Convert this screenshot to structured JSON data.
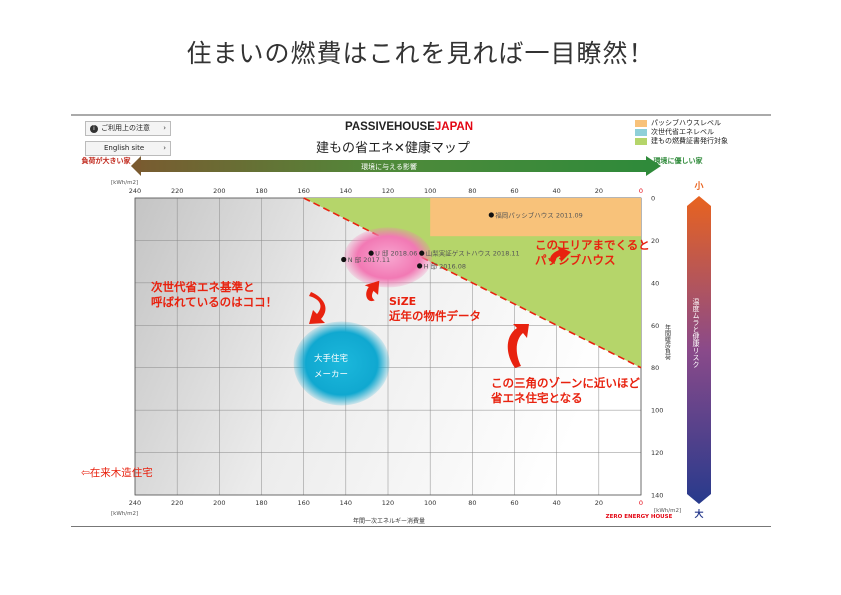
{
  "slide_title": "住まいの燃費はこれを見れば一目瞭然！",
  "header": {
    "btn_usage": "ご利用上の注意",
    "btn_english": "English site",
    "logo_a": "PASSIVEHOUSE",
    "logo_b": "JAPAN",
    "map_title": "建もの省エネ✕健康マップ"
  },
  "legend": [
    {
      "label": "パッシブハウスレベル",
      "color": "#f8c27a"
    },
    {
      "label": "次世代省エネレベル",
      "color": "#8fd0d8"
    },
    {
      "label": "建もの燃費証書発行対象",
      "color": "#b5d56a"
    }
  ],
  "arrow_bar": {
    "left_label": "負荷が大きい家",
    "middle_label": "環境に与える影響",
    "right_label": "環境に優しい家"
  },
  "risk_bar": {
    "top_label": "小",
    "bottom_label": "大",
    "side_label": "温度ムラと健康リスク"
  },
  "chart_data": {
    "type": "scatter",
    "xlabel": "年間一次エネルギー消費量",
    "ylabel": "年間暖房負荷",
    "x_unit": "[kWh/m2]",
    "y_unit": "[kWh/m2]",
    "x_reversed": true,
    "xlim": [
      240,
      0
    ],
    "ylim": [
      0,
      140
    ],
    "x_ticks": [
      "240",
      "220",
      "200",
      "180",
      "160",
      "140",
      "120",
      "100",
      "80",
      "60",
      "40",
      "20",
      "0"
    ],
    "y_ticks": [
      "0",
      "20",
      "40",
      "60",
      "80",
      "100",
      "120",
      "140"
    ],
    "grid": true,
    "zero_energy_label": "ZERO ENERGY HOUSE",
    "points": [
      {
        "label": "福岡パッシブハウス 2011.09",
        "x": 71,
        "y": 8
      },
      {
        "label": "U 邸 2018.06",
        "x": 128,
        "y": 26
      },
      {
        "label": "山梨実証ゲストハウス 2018.11",
        "x": 104,
        "y": 26
      },
      {
        "label": "N 邸 2017.11",
        "x": 141,
        "y": 29
      },
      {
        "label": "H 邸 2016.08",
        "x": 105,
        "y": 32
      }
    ],
    "regions": [
      {
        "name": "passive_house_level",
        "x_range": [
          100,
          0
        ],
        "y_range": [
          0,
          18
        ],
        "color": "#f8c27a"
      },
      {
        "name": "certificate_zone",
        "boundary": [
          [
            160,
            0
          ],
          [
            0,
            80
          ]
        ],
        "color": "#b5d56a"
      }
    ],
    "clusters": [
      {
        "name": "recent_projects",
        "label": "SiZE",
        "x": 120,
        "y": 28,
        "color": "#f279b4"
      },
      {
        "name": "major_makers",
        "label": "大手住宅メーカー",
        "x": 142,
        "y": 78,
        "color": "#18b4d8"
      }
    ]
  },
  "annotations": {
    "passive_area": "このエリアまでくると\nパッシブハウス",
    "standard_label": "次世代省エネ基準と\n呼ばれているのはココ！",
    "recent_label": "近年の物件データ",
    "triangle_note": "この三角のゾーンに近いほど\n省エネ住宅となる",
    "conventional": "⇦在来木造住宅",
    "maker_label_line1": "大手住宅",
    "maker_label_line2": "メーカー",
    "size_label": "SiZE"
  },
  "colors": {
    "accent_red": "#e8220f",
    "arrow_green": "#2f8a3a",
    "zone_green": "#b5d56a",
    "zone_orange": "#f8c27a",
    "pink": "#f279b4",
    "cyan": "#18b4d8"
  }
}
